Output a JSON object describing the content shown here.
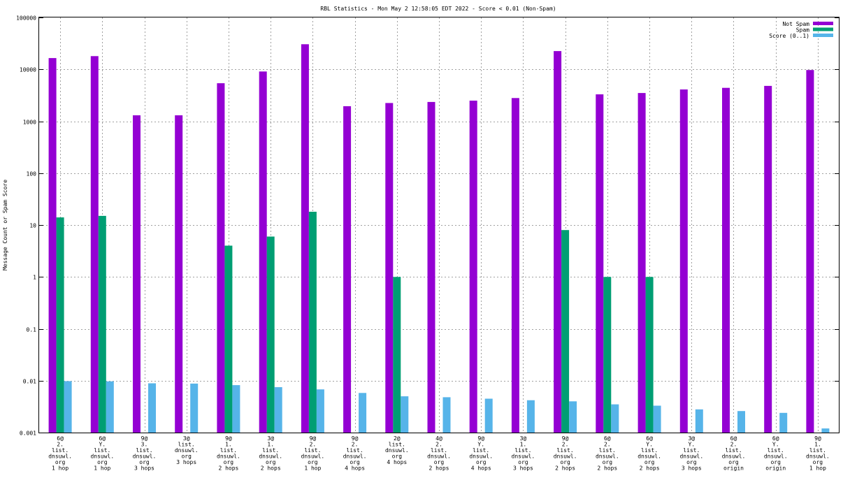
{
  "chart_data": {
    "type": "bar",
    "title": "RBL Statistics - Mon May  2 12:58:05 EDT 2022 - Score < 0.01 (Non-Spam)",
    "ylabel": "Message Count or Spam Score",
    "xlabel": "",
    "yscale": "log",
    "ylim": [
      0.001,
      100000
    ],
    "grid": true,
    "legend_position": "top-right",
    "y_ticks": [
      "0.001",
      "0.01",
      "0.1",
      "1",
      "10",
      "100",
      "1000",
      "10000",
      "100000"
    ],
    "categories": [
      [
        "6@",
        "2.",
        "list.",
        "dnsuwl.",
        "org",
        "1 hop"
      ],
      [
        "6@",
        "Y.",
        "list.",
        "dnsuwl.",
        "org",
        "1 hop"
      ],
      [
        "9@",
        "3.",
        "list.",
        "dnsuwl.",
        "org",
        "3 hops"
      ],
      [
        "3@",
        "list.",
        "dnsuwl.",
        "org",
        "3 hops"
      ],
      [
        "9@",
        "1.",
        "list.",
        "dnsuwl.",
        "org",
        "2 hops"
      ],
      [
        "3@",
        "1.",
        "list.",
        "dnsuwl.",
        "org",
        "2 hops"
      ],
      [
        "9@",
        "2.",
        "list.",
        "dnsuwl.",
        "org",
        "1 hop"
      ],
      [
        "9@",
        "2.",
        "list.",
        "dnsuwl.",
        "org",
        "4 hops"
      ],
      [
        "2@",
        "list.",
        "dnsuwl.",
        "org",
        "4 hops"
      ],
      [
        "4@",
        "2.",
        "list.",
        "dnsuwl.",
        "org",
        "2 hops"
      ],
      [
        "9@",
        "Y.",
        "list.",
        "dnsuwl.",
        "org",
        "4 hops"
      ],
      [
        "3@",
        "1.",
        "list.",
        "dnsuwl.",
        "org",
        "3 hops"
      ],
      [
        "9@",
        "2.",
        "list.",
        "dnsuwl.",
        "org",
        "2 hops"
      ],
      [
        "6@",
        "2.",
        "list.",
        "dnsuwl.",
        "org",
        "2 hops"
      ],
      [
        "6@",
        "Y.",
        "list.",
        "dnsuwl.",
        "org",
        "2 hops"
      ],
      [
        "3@",
        "Y.",
        "list.",
        "dnsuwl.",
        "org",
        "3 hops"
      ],
      [
        "6@",
        "2.",
        "list.",
        "dnsuwl.",
        "org",
        "origin"
      ],
      [
        "6@",
        "Y.",
        "list.",
        "dnsuwl.",
        "org",
        "origin"
      ],
      [
        "9@",
        "1.",
        "list.",
        "dnsuwl.",
        "org",
        "1 hop"
      ]
    ],
    "series": [
      {
        "name": "Not Spam",
        "color": "#9400d3",
        "values": [
          16500,
          18000,
          1300,
          1300,
          5400,
          9100,
          30500,
          1950,
          2250,
          2350,
          2500,
          2800,
          22500,
          3300,
          3500,
          4100,
          4400,
          4800,
          9700
        ]
      },
      {
        "name": "Spam",
        "color": "#009e73",
        "values": [
          14,
          15,
          0,
          0,
          4,
          6,
          18,
          0,
          1,
          0,
          0,
          0,
          8,
          1,
          1,
          0,
          0,
          0,
          0
        ]
      },
      {
        "name": "Score (0..1)",
        "color": "#56b4e9",
        "values": [
          0.0098,
          0.0097,
          0.0089,
          0.0088,
          0.0082,
          0.0075,
          0.0068,
          0.0058,
          0.005,
          0.0048,
          0.0045,
          0.0042,
          0.004,
          0.0035,
          0.0033,
          0.0028,
          0.0026,
          0.0024,
          0.0012
        ]
      }
    ]
  }
}
